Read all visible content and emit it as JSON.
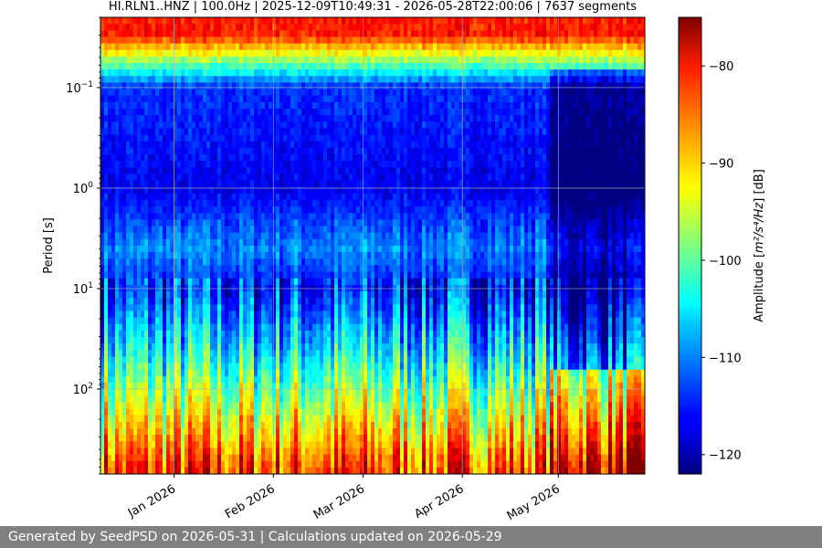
{
  "chart_data": {
    "type": "heatmap",
    "title": "HI.RLN1..HNZ | 100.0Hz | 2025-12-09T10:49:31 - 2026-05-28T22:00:06 | 7637 segments",
    "xlabel": "",
    "ylabel": "Period [s]",
    "colorbar_label": "Amplitude [m²/s⁴/Hz] [dB]",
    "colorbar_label_base": "Amplitude [",
    "colorbar_label_math": "m²/s⁴/Hz",
    "colorbar_label_tail": "] [dB]",
    "x_start": "2025-12-09",
    "x_end": "2026-05-28",
    "x_ticks": [
      "2026-01-01",
      "2026-02-01",
      "2026-03-01",
      "2026-04-01",
      "2026-05-01"
    ],
    "x_tick_labels": [
      "Jan 2026",
      "Feb 2026",
      "Mar 2026",
      "Apr 2026",
      "May 2026"
    ],
    "y_scale": "log",
    "y_inverted": true,
    "ylim": [
      0.02,
      700
    ],
    "y_ticks": [
      0.1,
      1,
      10,
      100
    ],
    "y_tick_base": "10",
    "y_tick_exponents": [
      "−1",
      "0",
      "1",
      "2"
    ],
    "color_range": [
      -122,
      -75
    ],
    "colorbar_ticks": [
      -80,
      -90,
      -100,
      -110,
      -120
    ],
    "colorbar_tick_labels": [
      "−80",
      "−90",
      "−100",
      "−110",
      "−120"
    ],
    "colormap": "jet",
    "grid": true,
    "approx_levels_db": [
      {
        "period": 0.03,
        "level": -82
      },
      {
        "period": 0.1,
        "level": -114
      },
      {
        "period": 1,
        "level": -117
      },
      {
        "period": 4,
        "level": -110
      },
      {
        "period": 10,
        "level": -115
      },
      {
        "period": 50,
        "level": -104
      },
      {
        "period": 200,
        "level": -93
      },
      {
        "period": 600,
        "level": -84
      }
    ]
  },
  "footer": {
    "text": "Generated by SeedPSD on 2026-05-31 | Calculations updated on 2026-05-29"
  }
}
